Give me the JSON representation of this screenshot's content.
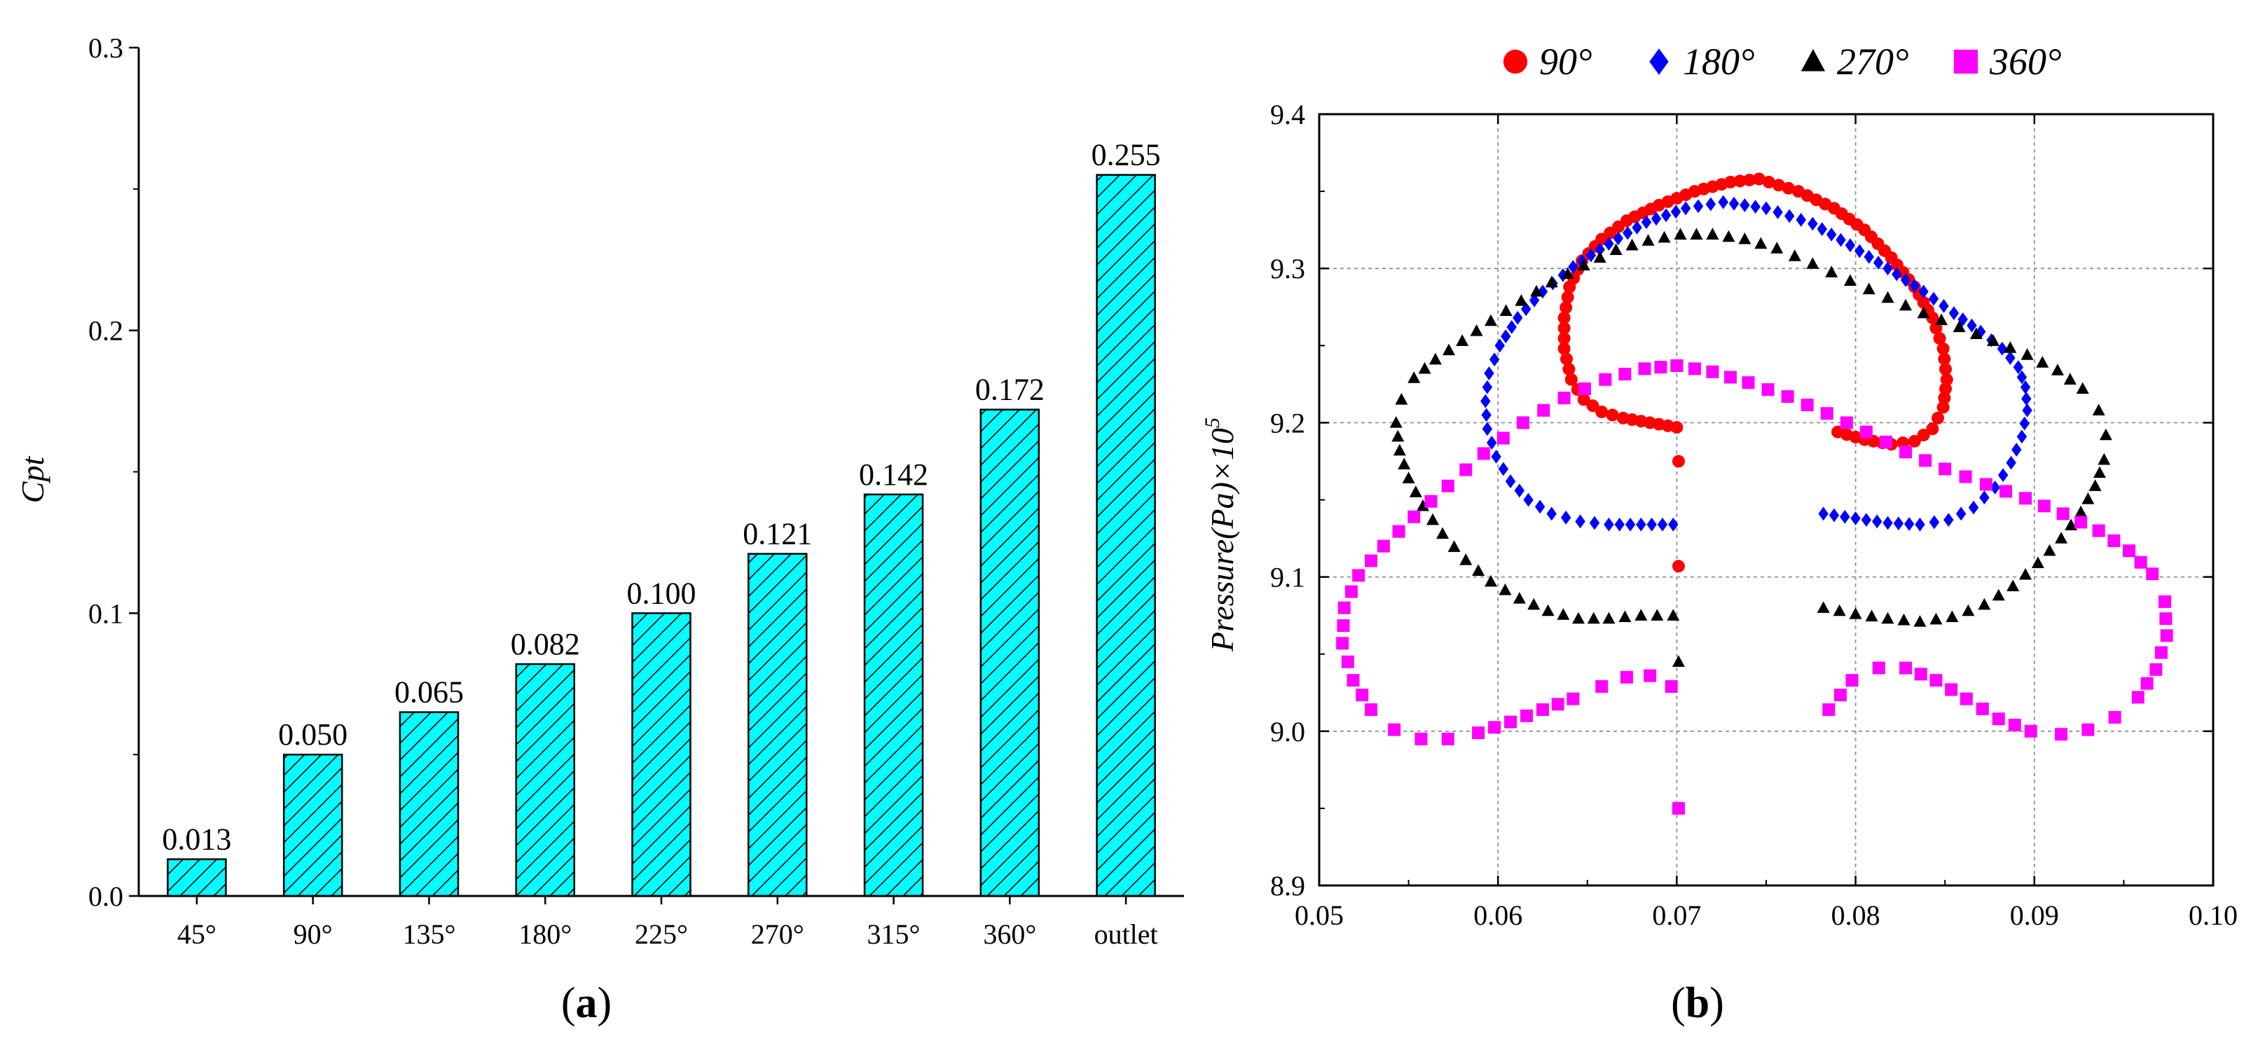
{
  "colors": {
    "bar_fill": "#00ffff",
    "bar_stroke": "#000000",
    "series_90": "#ff0000",
    "series_180": "#0000ff",
    "series_270": "#000000",
    "series_360": "#ff00ff",
    "grid": "#909090"
  },
  "chart_data": [
    {
      "type": "bar",
      "panel_label": "(a)",
      "panel_letter": "a",
      "title": "",
      "xlabel": "",
      "ylabel": "Cpt",
      "ylim": [
        0,
        0.3
      ],
      "yticks": [
        "0.0",
        "0.1",
        "0.2",
        "0.3"
      ],
      "categories": [
        "45°",
        "90°",
        "135°",
        "180°",
        "225°",
        "270°",
        "315°",
        "360°",
        "outlet"
      ],
      "values": [
        0.013,
        0.05,
        0.065,
        0.082,
        0.1,
        0.121,
        0.142,
        0.172,
        0.255
      ],
      "value_labels": [
        "0.013",
        "0.050",
        "0.065",
        "0.082",
        "0.100",
        "0.121",
        "0.142",
        "0.172",
        "0.255"
      ],
      "hatch": "diagonal"
    },
    {
      "type": "scatter",
      "panel_label": "(b)",
      "panel_letter": "b",
      "xlabel": "",
      "ylabel": "Pressure(Pa)×10",
      "ylabel_exponent": "5",
      "xlim": [
        0.05,
        0.1
      ],
      "ylim": [
        8.9,
        9.4
      ],
      "xticks": [
        "0.05",
        "0.06",
        "0.07",
        "0.08",
        "0.09",
        "0.10"
      ],
      "yticks": [
        "8.9",
        "9.0",
        "9.1",
        "9.2",
        "9.3",
        "9.4"
      ],
      "grid": true,
      "legend_position": "top",
      "series": [
        {
          "name": "90°",
          "marker": "circle",
          "color": "#ff0000",
          "left": {
            "x": [
              0.07,
              0.0685,
              0.067,
              0.0658,
              0.0648,
              0.0641,
              0.0637,
              0.0637,
              0.064,
              0.0647,
              0.0658,
              0.0672,
              0.069,
              0.071,
              0.073,
              0.0746
            ],
            "y": [
              9.197,
              9.2,
              9.203,
              9.207,
              9.215,
              9.228,
              9.248,
              9.268,
              9.288,
              9.305,
              9.319,
              9.331,
              9.341,
              9.35,
              9.356,
              9.358
            ]
          },
          "right": {
            "x": [
              0.079,
              0.0805,
              0.082,
              0.0833,
              0.0843,
              0.0849,
              0.0851,
              0.0849,
              0.0843,
              0.0833,
              0.082,
              0.0805,
              0.0788,
              0.0768,
              0.0746
            ],
            "y": [
              9.194,
              9.189,
              9.186,
              9.188,
              9.196,
              9.21,
              9.228,
              9.248,
              9.268,
              9.288,
              9.307,
              9.325,
              9.339,
              9.35,
              9.358
            ]
          },
          "center": {
            "x": [
              0.0701,
              0.0701
            ],
            "y": [
              9.175,
              9.107
            ]
          }
        },
        {
          "name": "180°",
          "marker": "diamond",
          "color": "#0000ff",
          "left": {
            "x": [
              0.0698,
              0.068,
              0.0662,
              0.0646,
              0.063,
              0.0617,
              0.0607,
              0.0599,
              0.0594,
              0.0593,
              0.0595,
              0.0601,
              0.0611,
              0.0625,
              0.0642,
              0.0662,
              0.0683,
              0.0705,
              0.0726
            ],
            "y": [
              9.134,
              9.134,
              9.134,
              9.136,
              9.141,
              9.15,
              9.162,
              9.178,
              9.196,
              9.214,
              9.232,
              9.25,
              9.268,
              9.285,
              9.301,
              9.316,
              9.33,
              9.339,
              9.343
            ]
          },
          "right": {
            "x": [
              0.0782,
              0.08,
              0.0818,
              0.0836,
              0.0852,
              0.0866,
              0.0878,
              0.0887,
              0.0893,
              0.0896,
              0.0895,
              0.0891,
              0.0882,
              0.087,
              0.0855,
              0.0838,
              0.0818,
              0.0797,
              0.0776,
              0.075,
              0.0726
            ],
            "y": [
              9.141,
              9.138,
              9.135,
              9.134,
              9.137,
              9.145,
              9.158,
              9.174,
              9.191,
              9.208,
              9.223,
              9.236,
              9.248,
              9.259,
              9.271,
              9.285,
              9.3,
              9.315,
              9.329,
              9.339,
              9.343
            ]
          }
        },
        {
          "name": "270°",
          "marker": "triangle",
          "color": "#000000",
          "left": {
            "x": [
              0.0698,
              0.068,
              0.0662,
              0.0645,
              0.0628,
              0.0612,
              0.0596,
              0.0582,
              0.0569,
              0.0558,
              0.055,
              0.0545,
              0.0543,
              0.0546,
              0.0553,
              0.0565,
              0.058,
              0.0596,
              0.0613,
              0.063,
              0.0648,
              0.0666,
              0.0684,
              0.0702,
              0.072
            ],
            "y": [
              9.075,
              9.075,
              9.073,
              9.073,
              9.078,
              9.086,
              9.097,
              9.111,
              9.128,
              9.146,
              9.164,
              9.182,
              9.2,
              9.215,
              9.229,
              9.241,
              9.253,
              9.266,
              9.279,
              9.291,
              9.302,
              9.312,
              9.318,
              9.322,
              9.322
            ]
          },
          "right": {
            "x": [
              0.0782,
              0.08,
              0.0818,
              0.0836,
              0.0854,
              0.0872,
              0.0888,
              0.0902,
              0.0915,
              0.0926,
              0.0934,
              0.0939,
              0.094,
              0.0936,
              0.0927,
              0.0913,
              0.0896,
              0.0877,
              0.0858,
              0.0838,
              0.0818,
              0.0797,
              0.0776,
              0.0756,
              0.0738,
              0.072
            ],
            "y": [
              9.08,
              9.076,
              9.073,
              9.071,
              9.074,
              9.082,
              9.094,
              9.109,
              9.125,
              9.142,
              9.159,
              9.176,
              9.192,
              9.208,
              9.222,
              9.234,
              9.244,
              9.253,
              9.262,
              9.271,
              9.281,
              9.292,
              9.303,
              9.313,
              9.319,
              9.322
            ]
          },
          "center": {
            "x": [
              0.0701
            ],
            "y": [
              9.045
            ]
          }
        },
        {
          "name": "360°",
          "marker": "square",
          "color": "#ff00ff",
          "left": {
            "x": [
              0.0697,
              0.0685,
              0.0672,
              0.0658,
              0.0642,
              0.0625,
              0.0607,
              0.0589,
              0.0572,
              0.0557,
              0.0542,
              0.0529,
              0.0519,
              0.0513,
              0.0514,
              0.0522,
              0.0536,
              0.0553,
              0.0572,
              0.0592,
              0.0614,
              0.0637,
              0.066,
              0.0682,
              0.07
            ],
            "y": [
              9.029,
              9.036,
              9.035,
              9.029,
              9.021,
              9.014,
              9.006,
              8.999,
              8.995,
              8.995,
              9.001,
              9.014,
              9.033,
              9.057,
              9.08,
              9.101,
              9.12,
              9.139,
              9.159,
              9.18,
              9.2,
              9.216,
              9.228,
              9.235,
              9.237
            ]
          },
          "right": {
            "x": [
              0.0785,
              0.0798,
              0.0813,
              0.0828,
              0.0845,
              0.0862,
              0.088,
              0.0898,
              0.0915,
              0.093,
              0.0945,
              0.0958,
              0.0968,
              0.0974,
              0.0973,
              0.0966,
              0.0953,
              0.0936,
              0.0916,
              0.0895,
              0.0873,
              0.085,
              0.0828,
              0.0806,
              0.0784,
              0.0762,
              0.074,
              0.072,
              0.07
            ],
            "y": [
              9.014,
              9.033,
              9.041,
              9.041,
              9.033,
              9.021,
              9.008,
              9.0,
              8.998,
              9.001,
              9.009,
              9.022,
              9.04,
              9.062,
              9.084,
              9.102,
              9.117,
              9.13,
              9.141,
              9.151,
              9.16,
              9.17,
              9.181,
              9.194,
              9.206,
              9.217,
              9.226,
              9.233,
              9.237
            ]
          },
          "center": {
            "x": [
              0.0701
            ],
            "y": [
              8.95
            ]
          }
        }
      ]
    }
  ]
}
